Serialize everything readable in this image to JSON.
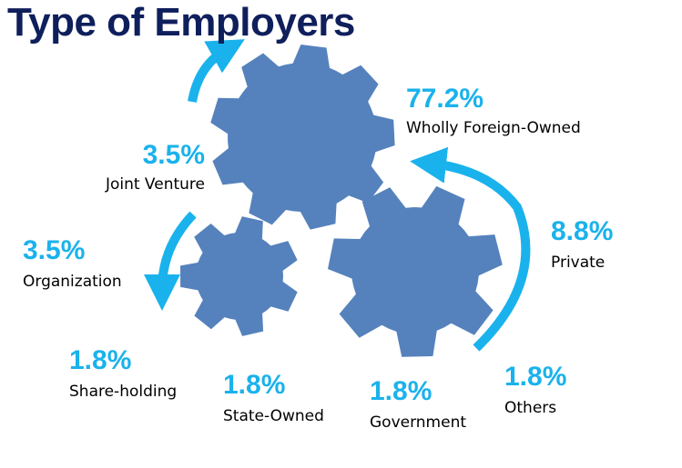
{
  "title": "Type of Employers",
  "colors": {
    "title": "#0f1f5c",
    "gear": "#5582bd",
    "arrow": "#1ab2ec",
    "percent": "#1ab2ec",
    "label": "#000000"
  },
  "chart_data": {
    "type": "pie",
    "title": "Type of Employers",
    "categories": [
      "Wholly Foreign-Owned",
      "Private",
      "Joint Venture",
      "Organization",
      "Share-holding",
      "State-Owned",
      "Government",
      "Others"
    ],
    "values": [
      77.2,
      8.8,
      3.5,
      3.5,
      1.8,
      1.8,
      1.8,
      1.8
    ]
  },
  "stats": [
    {
      "percent": "77.2%",
      "label": "Wholly Foreign-Owned"
    },
    {
      "percent": "8.8%",
      "label": "Private"
    },
    {
      "percent": "3.5%",
      "label": "Joint Venture"
    },
    {
      "percent": "3.5%",
      "label": "Organization"
    },
    {
      "percent": "1.8%",
      "label": "Share-holding"
    },
    {
      "percent": "1.8%",
      "label": "State-Owned"
    },
    {
      "percent": "1.8%",
      "label": "Government"
    },
    {
      "percent": "1.8%",
      "label": "Others"
    }
  ]
}
